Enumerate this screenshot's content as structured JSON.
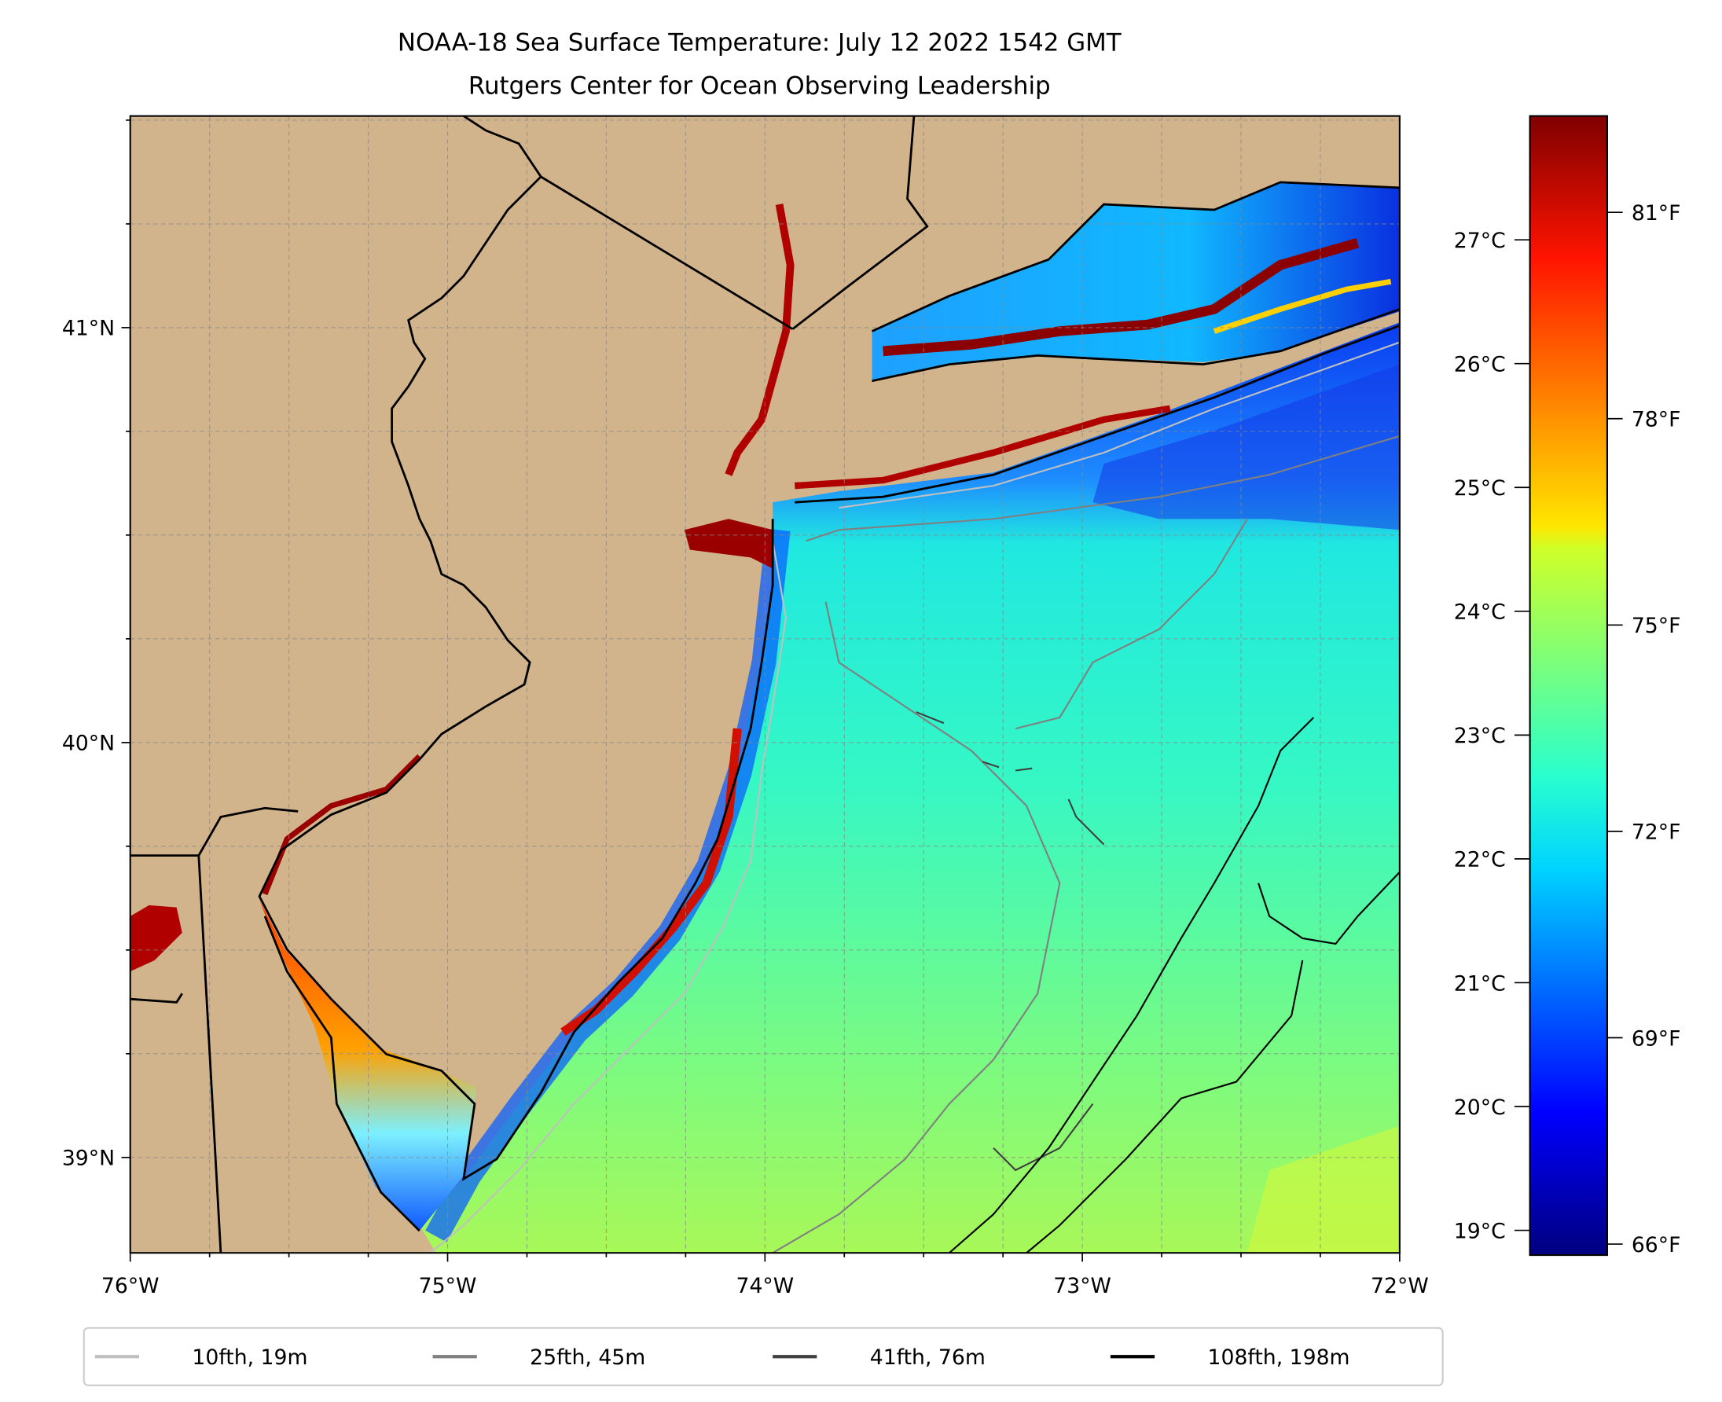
{
  "chart_data": {
    "type": "heatmap",
    "title": "NOAA-18 Sea Surface Temperature: July 12 2022 1542 GMT",
    "subtitle": "Rutgers Center for Ocean Observing Leadership",
    "xlabel": "",
    "ylabel": "",
    "xlim": [
      -76,
      -72
    ],
    "ylim": [
      38.77,
      41.51
    ],
    "x_ticks": [
      {
        "value": -76,
        "label": "76°W"
      },
      {
        "value": -75,
        "label": "75°W"
      },
      {
        "value": -74,
        "label": "74°W"
      },
      {
        "value": -73,
        "label": "73°W"
      },
      {
        "value": -72,
        "label": "72°W"
      }
    ],
    "y_ticks": [
      {
        "value": 41,
        "label": "41°N"
      },
      {
        "value": 40,
        "label": "40°N"
      },
      {
        "value": 39,
        "label": "39°N"
      }
    ],
    "grid": true,
    "colorbar": {
      "colormap": "jet",
      "range_c": [
        18.8,
        28.0
      ],
      "celsius_ticks": [
        {
          "value": 27,
          "label": "27°C"
        },
        {
          "value": 26,
          "label": "26°C"
        },
        {
          "value": 25,
          "label": "25°C"
        },
        {
          "value": 24,
          "label": "24°C"
        },
        {
          "value": 23,
          "label": "23°C"
        },
        {
          "value": 22,
          "label": "22°C"
        },
        {
          "value": 21,
          "label": "21°C"
        },
        {
          "value": 20,
          "label": "20°C"
        },
        {
          "value": 19,
          "label": "19°C"
        }
      ],
      "fahrenheit_ticks": [
        {
          "value": 81,
          "label": "81°F"
        },
        {
          "value": 78,
          "label": "78°F"
        },
        {
          "value": 75,
          "label": "75°F"
        },
        {
          "value": 72,
          "label": "72°F"
        },
        {
          "value": 69,
          "label": "69°F"
        },
        {
          "value": 66,
          "label": "66°F"
        }
      ]
    },
    "legend": {
      "placement": "bottom",
      "entries": [
        {
          "label": "10fth, 19m",
          "color": "#c0c0c0"
        },
        {
          "label": "25fth, 45m",
          "color": "#808080"
        },
        {
          "label": "41fth, 76m",
          "color": "#404040"
        },
        {
          "label": "108fth, 198m",
          "color": "#000000"
        }
      ]
    },
    "land_color": "#d2b48c"
  }
}
